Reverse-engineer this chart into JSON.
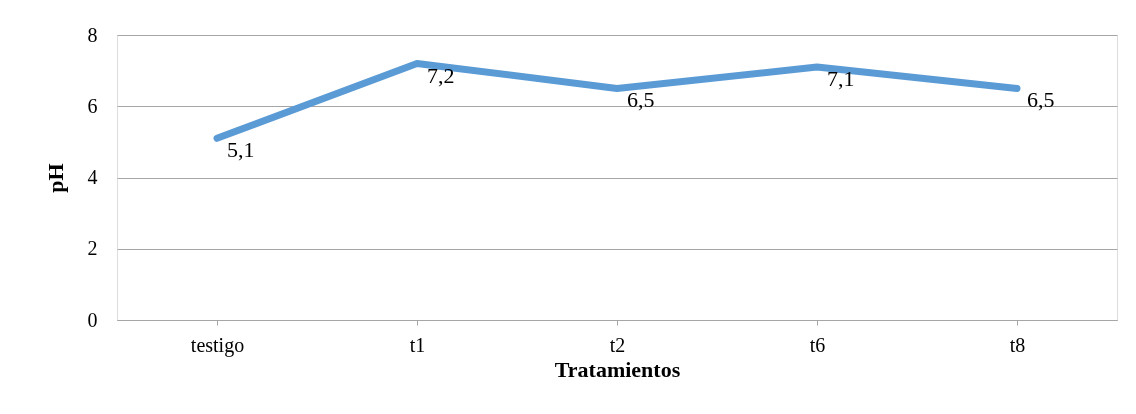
{
  "chart_data": {
    "type": "line",
    "xlabel": "Tratamientos",
    "ylabel": "pH",
    "categories": [
      "testigo",
      "t1",
      "t2",
      "t6",
      "t8"
    ],
    "series": [
      {
        "color": "#5b9bd5",
        "values": [
          5.1,
          7.2,
          6.5,
          7.1,
          6.5
        ],
        "value_labels": [
          "5,1",
          "7,2",
          "6,5",
          "7,1",
          "6,5"
        ]
      }
    ],
    "ylim": [
      0,
      8
    ],
    "yticks": [
      0,
      2,
      4,
      6,
      8
    ],
    "grid": "y",
    "marker": "none",
    "line_style": "solid",
    "legend": false
  }
}
